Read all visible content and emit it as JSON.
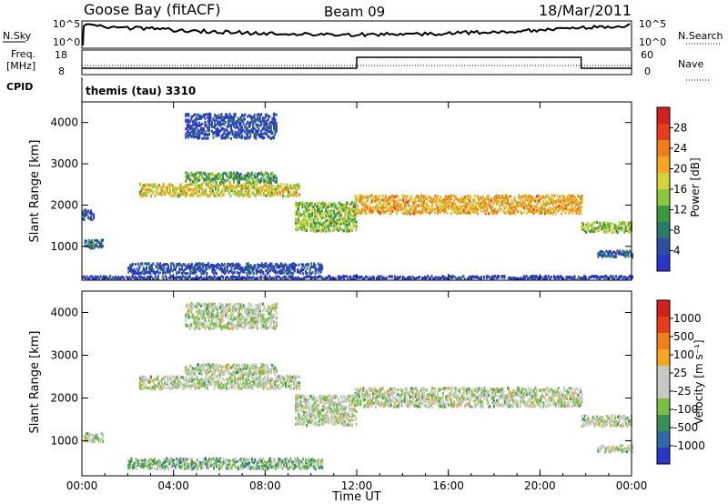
{
  "header": {
    "station": "Goose Bay (fitACF)",
    "beam": "Beam 09",
    "date": "18/Mar/2011"
  },
  "noise_panel": {
    "left_label": "N.Sky",
    "right_label": "N.Search",
    "left_ticks": [
      "10^5",
      "10^0"
    ],
    "right_ticks": [
      "10^5",
      "10^0"
    ]
  },
  "freq_panel": {
    "left_label_line1": "Freq.",
    "left_label_line2": "[MHz]",
    "right_label": "Nave",
    "left_ticks": [
      "18",
      "8"
    ],
    "right_ticks": [
      "60",
      "0"
    ]
  },
  "cpid": {
    "label": "CPID",
    "value": "themis (tau) 3310"
  },
  "colors": {
    "power": [
      "#2b35c9",
      "#2d4fa2",
      "#2e7a6a",
      "#3c9a3c",
      "#8cc63f",
      "#d8d23a",
      "#f5a623",
      "#f07f1a",
      "#ea3c1a",
      "#d61f1f"
    ],
    "velocity": [
      "#2b35c9",
      "#2f6aa6",
      "#3a8f56",
      "#77c043",
      "#c8c8c2",
      "#c8c8c2",
      "#f5a623",
      "#f07f1a",
      "#ea3c1a",
      "#d61f1f"
    ]
  },
  "chart_data": [
    {
      "type": "heatmap",
      "panel": "power",
      "ylabel": "Slant Range [km]",
      "xlabel": "",
      "x_ticks": [
        "00:00",
        "04:00",
        "08:00",
        "12:00",
        "16:00",
        "20:00",
        "00:00"
      ],
      "xlim_hours": [
        0,
        24
      ],
      "y_ticks": [
        1000,
        2000,
        3000,
        4000
      ],
      "ylim": [
        180,
        4500
      ],
      "colorbar": {
        "label": "Power [dB]",
        "ticks": [
          "28",
          "24",
          "20",
          "16",
          "12",
          "8",
          "4"
        ]
      },
      "regions": [
        {
          "t_start": 0.1,
          "t_end": 0.9,
          "r_center": 1050,
          "r_width": 220,
          "level": 0.2
        },
        {
          "t_start": 0.0,
          "t_end": 0.5,
          "r_center": 1750,
          "r_width": 250,
          "level": 0.1
        },
        {
          "t_start": 2.5,
          "t_end": 9.5,
          "r_center": 2350,
          "r_width": 300,
          "level": 0.55
        },
        {
          "t_start": 4.5,
          "t_end": 8.5,
          "r_center": 2650,
          "r_width": 250,
          "level": 0.35
        },
        {
          "t_start": 9.3,
          "t_end": 12.0,
          "r_center": 1700,
          "r_width": 700,
          "level": 0.45
        },
        {
          "t_start": 11.9,
          "t_end": 21.8,
          "r_center": 2000,
          "r_width": 450,
          "level": 0.65
        },
        {
          "t_start": 21.8,
          "t_end": 24.0,
          "r_center": 1450,
          "r_width": 250,
          "level": 0.45
        },
        {
          "t_start": 22.5,
          "t_end": 24.0,
          "r_center": 800,
          "r_width": 160,
          "level": 0.15
        },
        {
          "t_start": 4.5,
          "t_end": 8.5,
          "r_center": 3900,
          "r_width": 600,
          "level": 0.1
        },
        {
          "t_start": 2.0,
          "t_end": 10.5,
          "r_center": 450,
          "r_width": 250,
          "level": 0.1
        },
        {
          "t_start": 0.0,
          "t_end": 24.0,
          "r_center": 230,
          "r_width": 80,
          "level": 0.05
        }
      ]
    },
    {
      "type": "heatmap",
      "panel": "velocity",
      "ylabel": "Slant Range [km]",
      "xlabel": "Time UT",
      "x_ticks": [
        "00:00",
        "04:00",
        "08:00",
        "12:00",
        "16:00",
        "20:00",
        "00:00"
      ],
      "xlim_hours": [
        0,
        24
      ],
      "y_ticks": [
        1000,
        2000,
        3000,
        4000
      ],
      "ylim": [
        180,
        4500
      ],
      "colorbar": {
        "label": "Velocity [m s⁻¹]",
        "ticks": [
          "1000",
          "500",
          "100",
          "25",
          "-25",
          "-100",
          "-500",
          "-1000"
        ]
      },
      "regions": [
        {
          "t_start": 0.1,
          "t_end": 0.9,
          "r_center": 1050,
          "r_width": 220,
          "level": 0.45
        },
        {
          "t_start": 2.5,
          "t_end": 9.5,
          "r_center": 2350,
          "r_width": 300,
          "level": 0.45
        },
        {
          "t_start": 4.5,
          "t_end": 8.5,
          "r_center": 2650,
          "r_width": 250,
          "level": 0.45
        },
        {
          "t_start": 9.3,
          "t_end": 12.0,
          "r_center": 1700,
          "r_width": 700,
          "level": 0.45
        },
        {
          "t_start": 11.9,
          "t_end": 21.8,
          "r_center": 2000,
          "r_width": 450,
          "level": 0.45
        },
        {
          "t_start": 21.8,
          "t_end": 24.0,
          "r_center": 1450,
          "r_width": 250,
          "level": 0.45
        },
        {
          "t_start": 22.5,
          "t_end": 24.0,
          "r_center": 800,
          "r_width": 160,
          "level": 0.45
        },
        {
          "t_start": 4.5,
          "t_end": 8.5,
          "r_center": 3900,
          "r_width": 600,
          "level": 0.45
        },
        {
          "t_start": 2.0,
          "t_end": 10.5,
          "r_center": 450,
          "r_width": 250,
          "level": 0.35
        }
      ]
    }
  ]
}
